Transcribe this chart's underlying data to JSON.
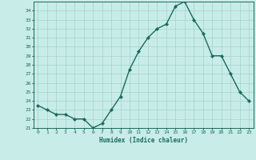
{
  "x": [
    0,
    1,
    2,
    3,
    4,
    5,
    6,
    7,
    8,
    9,
    10,
    11,
    12,
    13,
    14,
    15,
    16,
    17,
    18,
    19,
    20,
    21,
    22,
    23
  ],
  "y": [
    23.5,
    23.0,
    22.5,
    22.5,
    22.0,
    22.0,
    21.0,
    21.5,
    23.0,
    24.5,
    27.5,
    29.5,
    31.0,
    32.0,
    32.5,
    34.5,
    35.0,
    33.0,
    31.5,
    29.0,
    29.0,
    27.0,
    25.0,
    24.0
  ],
  "xlabel": "Humidex (Indice chaleur)",
  "xticks": [
    0,
    1,
    2,
    3,
    4,
    5,
    6,
    7,
    8,
    9,
    10,
    11,
    12,
    13,
    14,
    15,
    16,
    17,
    18,
    19,
    20,
    21,
    22,
    23
  ],
  "yticks": [
    21,
    22,
    23,
    24,
    25,
    26,
    27,
    28,
    29,
    30,
    31,
    32,
    33,
    34
  ],
  "ylim": [
    21,
    35
  ],
  "xlim": [
    -0.5,
    23.5
  ],
  "line_color": "#1a6b5a",
  "bg_color": "#c8ece8",
  "grid_color": "#a8d8d0",
  "marker": "D",
  "markersize": 2.2,
  "linewidth": 1.0
}
